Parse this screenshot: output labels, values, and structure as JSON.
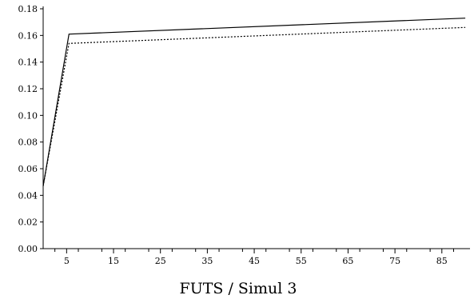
{
  "chart_data": {
    "type": "line",
    "title": "FUTS / Simul 3",
    "xlim": [
      0,
      91
    ],
    "ylim": [
      0,
      0.18
    ],
    "x_ticks": [
      5,
      15,
      25,
      35,
      45,
      55,
      65,
      75,
      85
    ],
    "y_ticks": [
      "0.00",
      "0.02",
      "0.04",
      "0.06",
      "0.08",
      "0.10",
      "0.12",
      "0.14",
      "0.16",
      "0.18"
    ],
    "grid": false,
    "series": [
      {
        "style": "solid",
        "color": "#000000",
        "points": [
          [
            0,
            0.047
          ],
          [
            5.5,
            0.161
          ],
          [
            90,
            0.173
          ]
        ]
      },
      {
        "style": "dotted",
        "color": "#000000",
        "points": [
          [
            0,
            0.047
          ],
          [
            5.5,
            0.154
          ],
          [
            90,
            0.166
          ]
        ]
      }
    ]
  }
}
